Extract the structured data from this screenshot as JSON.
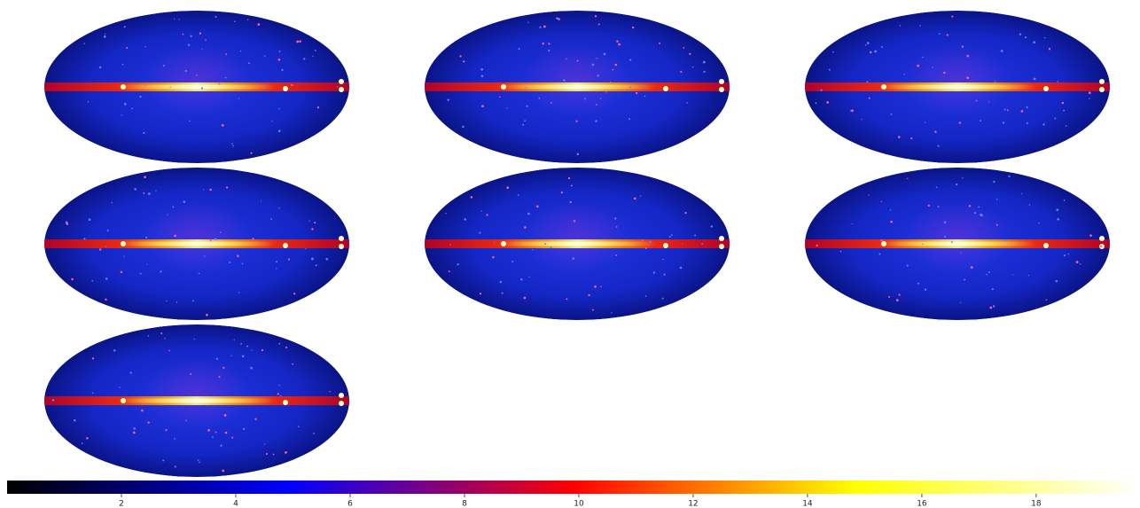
{
  "chart_data": {
    "type": "colorbar",
    "clim": [
      0,
      19.8
    ],
    "colors": [
      "#000000",
      "#0000ff",
      "#ff0000",
      "#ffff00",
      "#ffffff"
    ],
    "xticks": [
      2,
      4,
      6,
      8,
      10,
      12,
      14,
      16,
      18
    ]
  }
}
